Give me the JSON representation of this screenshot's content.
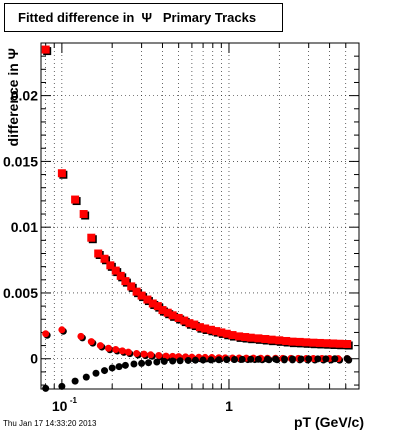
{
  "chart_data": {
    "type": "scatter",
    "title": "Fitted difference in  Ψ   Primary Tracks",
    "xlabel": "pT (GeV/c)",
    "ylabel": "difference in Ψ",
    "x_scale": "log",
    "xlim": [
      0.075,
      6.0
    ],
    "ylim": [
      -0.0023,
      0.024
    ],
    "grid": true,
    "x_ticks": [
      {
        "value": 0.1,
        "base": "10",
        "exp": "-1"
      },
      {
        "value": 1,
        "label": "1"
      }
    ],
    "y_ticks": [
      {
        "value": 0,
        "label": "0"
      },
      {
        "value": 0.005,
        "label": "0.005"
      },
      {
        "value": 0.01,
        "label": "0.01"
      },
      {
        "value": 0.015,
        "label": "0.015"
      },
      {
        "value": 0.02,
        "label": "0.02"
      }
    ],
    "series": [
      {
        "marker": "square",
        "colors": [
          "#000000",
          "#ff0000"
        ],
        "x": [
          0.08,
          0.1,
          0.12,
          0.135,
          0.15,
          0.165,
          0.18,
          0.195,
          0.21,
          0.225,
          0.24,
          0.26,
          0.28,
          0.3,
          0.325,
          0.35,
          0.375,
          0.4,
          0.43,
          0.46,
          0.5,
          0.54,
          0.58,
          0.62,
          0.67,
          0.72,
          0.78,
          0.84,
          0.9,
          0.97,
          1.05,
          1.15,
          1.25,
          1.35,
          1.5,
          1.65,
          1.8,
          2.0,
          2.2,
          2.4,
          2.65,
          2.9,
          3.2,
          3.5,
          3.85,
          4.2,
          4.6,
          5.1
        ],
        "y": [
          0.0235,
          0.0141,
          0.0121,
          0.011,
          0.0092,
          0.008,
          0.0076,
          0.0071,
          0.0067,
          0.0063,
          0.0059,
          0.0055,
          0.0051,
          0.0048,
          0.0045,
          0.0042,
          0.004,
          0.0037,
          0.0035,
          0.0033,
          0.0031,
          0.0029,
          0.0027,
          0.0026,
          0.0024,
          0.0023,
          0.0022,
          0.0021,
          0.002,
          0.0019,
          0.0018,
          0.0017,
          0.00165,
          0.0016,
          0.00155,
          0.0015,
          0.00145,
          0.0014,
          0.00135,
          0.0013,
          0.00128,
          0.00125,
          0.00122,
          0.0012,
          0.00118,
          0.00116,
          0.00114,
          0.00112
        ]
      },
      {
        "marker": "circle",
        "colors": [
          "#000000",
          "#ff0000"
        ],
        "x": [
          0.08,
          0.1,
          0.13,
          0.15,
          0.17,
          0.19,
          0.21,
          0.23,
          0.25,
          0.28,
          0.31,
          0.34,
          0.38,
          0.42,
          0.46,
          0.5,
          0.55,
          0.6,
          0.66,
          0.72,
          0.79,
          0.87,
          0.95,
          1.05,
          1.15,
          1.27,
          1.4,
          1.55,
          1.7,
          1.9,
          2.1,
          2.35,
          2.6,
          2.9,
          3.2,
          3.6,
          4.0,
          4.5,
          5.1
        ],
        "y": [
          0.0019,
          0.0022,
          0.0017,
          0.0013,
          0.001,
          0.0008,
          0.0007,
          0.0006,
          0.0005,
          0.0004,
          0.00035,
          0.0003,
          0.00025,
          0.0002,
          0.00018,
          0.00016,
          0.00014,
          0.00012,
          0.00011,
          0.0001,
          9e-05,
          8e-05,
          7e-05,
          6e-05,
          6e-05,
          5e-05,
          5e-05,
          4e-05,
          4e-05,
          4e-05,
          3e-05,
          3e-05,
          3e-05,
          2e-05,
          2e-05,
          2e-05,
          2e-05,
          1e-05,
          1e-05
        ]
      },
      {
        "marker": "circle",
        "colors": [
          "#000000"
        ],
        "x": [
          0.08,
          0.1,
          0.12,
          0.14,
          0.16,
          0.18,
          0.2,
          0.22,
          0.24,
          0.27,
          0.3,
          0.33,
          0.37,
          0.41,
          0.46,
          0.51,
          0.57,
          0.63,
          0.7,
          0.78,
          0.87,
          0.97,
          1.08,
          1.2,
          1.35,
          1.5,
          1.7,
          1.9,
          2.15,
          2.4,
          2.7,
          3.0,
          3.4,
          3.8,
          4.3,
          5.1
        ],
        "y": [
          -0.0024,
          -0.0021,
          -0.0017,
          -0.0014,
          -0.0011,
          -0.0009,
          -0.0007,
          -0.0006,
          -0.0005,
          -0.0004,
          -0.00035,
          -0.0003,
          -0.00025,
          -0.0002,
          -0.00017,
          -0.00015,
          -0.00013,
          -0.00011,
          -0.0001,
          -9e-05,
          -8e-05,
          -7e-05,
          -6e-05,
          -5e-05,
          -4e-05,
          -4e-05,
          -3e-05,
          -3e-05,
          -2e-05,
          -2e-05,
          -2e-05,
          -1e-05,
          -1e-05,
          -1e-05,
          0.0,
          1e-05
        ]
      }
    ]
  },
  "footer": {
    "timestamp": "Thu Jan 17 14:33:20 2013"
  }
}
